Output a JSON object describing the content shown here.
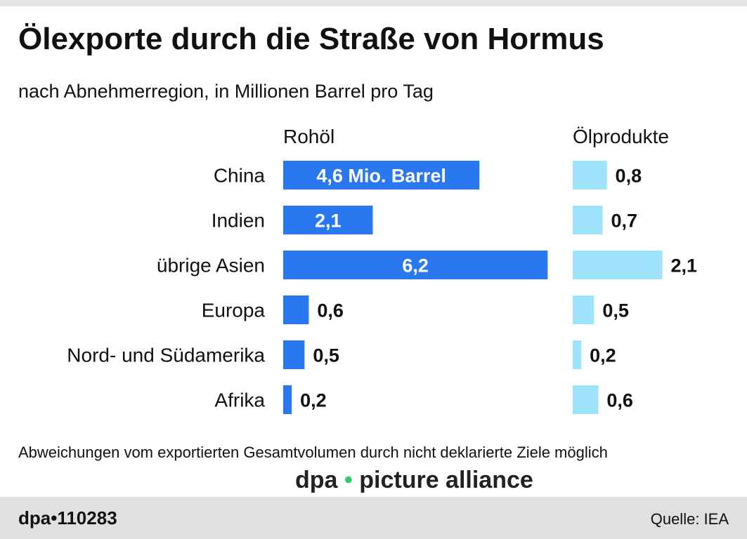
{
  "title": "Ölexporte durch die Straße von Hormus",
  "subtitle": "nach Abnehmerregion, in Millionen Barrel pro Tag",
  "note": "Abweichungen vom exportierten Gesamtvolumen durch nicht deklarierte Ziele möglich",
  "footer": {
    "logo": "dpa•110283",
    "source": "Quelle: IEA"
  },
  "watermark": "dpa • picture alliance",
  "chart_data": {
    "type": "bar",
    "orientation": "horizontal",
    "categories": [
      "China",
      "Indien",
      "übrige Asien",
      "Europa",
      "Nord- und Südamerika",
      "Afrika"
    ],
    "series": [
      {
        "name": "Rohöl",
        "color": "#2a78f0",
        "values": [
          4.6,
          2.1,
          6.2,
          0.6,
          0.5,
          0.2
        ],
        "labels": [
          "4,6 Mio. Barrel",
          "2,1",
          "6,2",
          "0,6",
          "0,5",
          "0,2"
        ]
      },
      {
        "name": "Ölprodukte",
        "color": "#9ee3fb",
        "values": [
          0.8,
          0.7,
          2.1,
          0.5,
          0.2,
          0.6
        ],
        "labels": [
          "0,8",
          "0,7",
          "2,1",
          "0,5",
          "0,2",
          "0,6"
        ]
      }
    ]
  }
}
